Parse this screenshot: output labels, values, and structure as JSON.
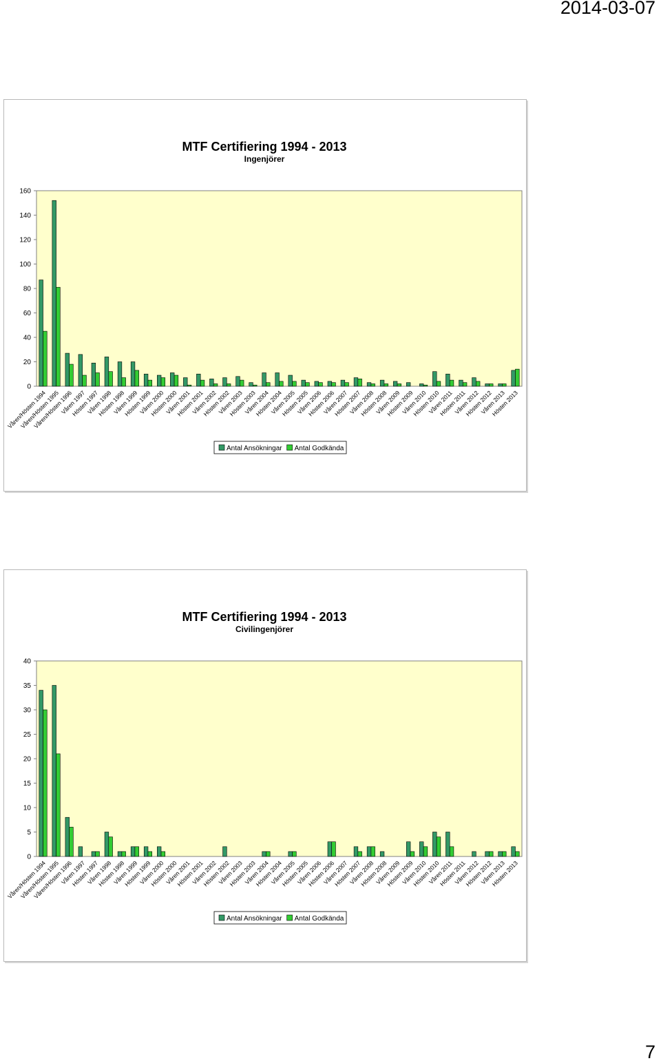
{
  "page": {
    "date": "2014-03-07",
    "page_number": "7"
  },
  "chart_data": [
    {
      "type": "bar",
      "title": "MTF Certifiering 1994 - 2013",
      "subtitle": "Ingenjörer",
      "ylim": [
        0,
        160
      ],
      "yticks": [
        0,
        20,
        40,
        60,
        80,
        100,
        120,
        140,
        160
      ],
      "plot_background": "#ffffcc",
      "grid": false,
      "legend_position": "bottom",
      "categories": [
        "Våren/Hösten 1994",
        "Våren/Hösten 1995",
        "Våren/Hösten 1996",
        "Våren 1997",
        "Hösten 1997",
        "Våren 1998",
        "Hösten 1998",
        "Våren 1999",
        "Hösten 1999",
        "Våren 2000",
        "Hösten 2000",
        "Våren 2001",
        "Hösten 2001",
        "Våren 2002",
        "Hösten 2002",
        "Våren 2003",
        "Hösten 2003",
        "Våren 2004",
        "Hösten 2004",
        "Våren 2005",
        "Hösten 2005",
        "Våren 2006",
        "Hösten 2006",
        "Våren 2007",
        "Hösten 2007",
        "Våren 2008",
        "Hösten 2008",
        "Våren 2009",
        "Hösten 2009",
        "Våren 2010",
        "Hösten 2010",
        "Våren 2011",
        "Hösten 2011",
        "Våren 2012",
        "Hösten 2012",
        "Våren 2013",
        "Hösten 2013"
      ],
      "series": [
        {
          "name": "Antal Ansökningar",
          "color": "#339966",
          "values": [
            87,
            152,
            27,
            26,
            19,
            24,
            20,
            20,
            10,
            9,
            11,
            7,
            10,
            6,
            7,
            8,
            3,
            11,
            11,
            9,
            5,
            4,
            4,
            5,
            7,
            3,
            5,
            4,
            3,
            2,
            12,
            10,
            5,
            7,
            2,
            2,
            13
          ]
        },
        {
          "name": "Antal Godkända",
          "color": "#33cc33",
          "values": [
            45,
            81,
            18,
            9,
            11,
            12,
            7,
            13,
            5,
            7,
            9,
            1,
            5,
            2,
            2,
            5,
            1,
            3,
            4,
            4,
            3,
            3,
            3,
            3,
            6,
            2,
            2,
            2,
            0,
            1,
            4,
            5,
            3,
            4,
            2,
            2,
            14
          ]
        }
      ]
    },
    {
      "type": "bar",
      "title": "MTF Certifiering 1994 - 2013",
      "subtitle": "Civilingenjörer",
      "ylim": [
        0,
        40
      ],
      "yticks": [
        0,
        5,
        10,
        15,
        20,
        25,
        30,
        35,
        40
      ],
      "plot_background": "#ffffcc",
      "grid": false,
      "legend_position": "bottom",
      "categories": [
        "Våren/Hösten 1994",
        "Våren/Hösten 1995",
        "Våren/Hösten 1996",
        "Våren 1997",
        "Hösten 1997",
        "Våren 1998",
        "Hösten 1998",
        "Våren 1999",
        "Hösten 1999",
        "Våren 2000",
        "Hösten 2000",
        "Våren 2001",
        "Hösten 2001",
        "Våren 2002",
        "Hösten 2002",
        "Våren 2003",
        "Hösten 2003",
        "Våren 2004",
        "Hösten 2004",
        "Våren 2005",
        "Hösten 2005",
        "Våren 2006",
        "Hösten 2006",
        "Våren 2007",
        "Hösten 2007",
        "Våren 2008",
        "Hösten 2008",
        "Våren 2009",
        "Hösten 2009",
        "Våren 2010",
        "Hösten 2010",
        "Våren 2011",
        "Hösten 2011",
        "Våren 2012",
        "Hösten 2012",
        "Våren 2013",
        "Hösten 2013"
      ],
      "series": [
        {
          "name": "Antal Ansökningar",
          "color": "#339966",
          "values": [
            34,
            35,
            8,
            2,
            1,
            5,
            1,
            2,
            2,
            2,
            0,
            0,
            0,
            0,
            2,
            0,
            0,
            1,
            0,
            1,
            0,
            0,
            3,
            0,
            2,
            2,
            1,
            0,
            3,
            3,
            5,
            5,
            0,
            1,
            1,
            1,
            2
          ]
        },
        {
          "name": "Antal Godkända",
          "color": "#33cc33",
          "values": [
            30,
            21,
            6,
            0,
            1,
            4,
            1,
            2,
            1,
            1,
            0,
            0,
            0,
            0,
            0,
            0,
            0,
            1,
            0,
            1,
            0,
            0,
            3,
            0,
            1,
            2,
            0,
            0,
            1,
            2,
            4,
            2,
            0,
            0,
            1,
            1,
            1
          ]
        }
      ]
    }
  ]
}
